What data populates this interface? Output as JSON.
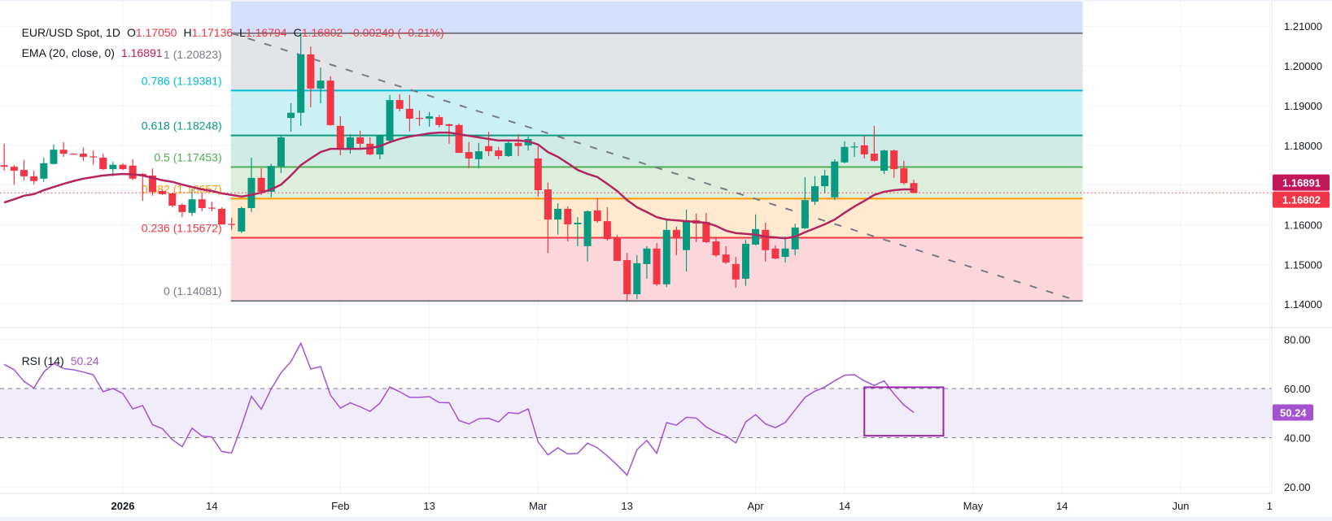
{
  "legend": {
    "symbol": "EUR/USD Spot, 1D",
    "o_label": "O",
    "open": "1.17050",
    "h_label": "H",
    "high": "1.17136",
    "l_label": "L",
    "low": "1.16794",
    "c_label": "C",
    "close": "1.16802",
    "change": "-0.00249 (−0.21%)"
  },
  "ema_legend": {
    "label": "EMA (20, close, 0)",
    "value": "1.16891"
  },
  "rsi_legend": {
    "label": "RSI (14)",
    "value": "50.24"
  },
  "colors": {
    "up": "#089981",
    "down": "#f23645",
    "ema": "#b2255f",
    "rsi": "#a552d2",
    "rsi_band": "#f1ecf9",
    "ema_badge": "#c2185b",
    "price_badge": "#f23645",
    "rsi_badge": "#a552d2",
    "trendline": "#787b86",
    "rsi_box": "#9c27b0"
  },
  "chart_data": [
    {
      "type": "candlestick",
      "ylim": [
        1.1341,
        1.2166
      ],
      "y_ticks": [
        "1.21000",
        "1.20000",
        "1.19000",
        "1.18000",
        "1.16000",
        "1.15000",
        "1.14000"
      ],
      "y_gridlines": [
        1.21,
        1.2,
        1.19,
        1.18,
        1.17,
        1.16,
        1.15,
        1.14
      ],
      "x_ticks": [
        {
          "label": "2026",
          "date": "2026-01-01",
          "bold": true
        },
        {
          "label": "14",
          "date": "2026-01-14"
        },
        {
          "label": "Feb",
          "date": "2026-02-02"
        },
        {
          "label": "13",
          "date": "2026-02-13"
        },
        {
          "label": "Mar",
          "date": "2026-03-02"
        },
        {
          "label": "13",
          "date": "2026-03-13"
        },
        {
          "label": "Apr",
          "date": "2026-04-01"
        },
        {
          "label": "14",
          "date": "2026-04-14"
        },
        {
          "label": "May",
          "date": "2026-05-01"
        },
        {
          "label": "14",
          "date": "2026-05-14"
        },
        {
          "label": "Jun",
          "date": "2026-06-01"
        },
        {
          "label": "1",
          "date": "2026-06-12"
        }
      ],
      "dates": [
        "2025-12-16",
        "2025-12-17",
        "2025-12-18",
        "2025-12-19",
        "2025-12-22",
        "2025-12-23",
        "2025-12-24",
        "2025-12-25",
        "2025-12-26",
        "2025-12-29",
        "2025-12-30",
        "2025-12-31",
        "2026-01-01",
        "2026-01-02",
        "2026-01-05",
        "2026-01-06",
        "2026-01-07",
        "2026-01-08",
        "2026-01-09",
        "2026-01-12",
        "2026-01-13",
        "2026-01-14",
        "2026-01-15",
        "2026-01-16",
        "2026-01-19",
        "2026-01-20",
        "2026-01-21",
        "2026-01-22",
        "2026-01-23",
        "2026-01-26",
        "2026-01-27",
        "2026-01-28",
        "2026-01-29",
        "2026-01-30",
        "2026-02-02",
        "2026-02-03",
        "2026-02-04",
        "2026-02-05",
        "2026-02-06",
        "2026-02-09",
        "2026-02-10",
        "2026-02-11",
        "2026-02-12",
        "2026-02-13",
        "2026-02-16",
        "2026-02-17",
        "2026-02-18",
        "2026-02-19",
        "2026-02-20",
        "2026-02-23",
        "2026-02-24",
        "2026-02-25",
        "2026-02-26",
        "2026-02-27",
        "2026-03-02",
        "2026-03-03",
        "2026-03-04",
        "2026-03-05",
        "2026-03-06",
        "2026-03-09",
        "2026-03-10",
        "2026-03-11",
        "2026-03-12",
        "2026-03-13",
        "2026-03-16",
        "2026-03-17",
        "2026-03-18",
        "2026-03-19",
        "2026-03-20",
        "2026-03-23",
        "2026-03-24",
        "2026-03-25",
        "2026-03-26",
        "2026-03-27",
        "2026-03-30",
        "2026-03-31",
        "2026-04-01",
        "2026-04-02",
        "2026-04-03",
        "2026-04-06",
        "2026-04-07",
        "2026-04-08",
        "2026-04-09",
        "2026-04-10",
        "2026-04-13",
        "2026-04-14",
        "2026-04-15",
        "2026-04-16",
        "2026-04-17",
        "2026-04-20",
        "2026-04-21",
        "2026-04-22",
        "2026-04-23"
      ],
      "ohlc": [
        [
          1.175,
          1.1804,
          1.1736,
          1.1746
        ],
        [
          1.1746,
          1.175,
          1.1701,
          1.1736
        ],
        [
          1.1738,
          1.1763,
          1.1712,
          1.1722
        ],
        [
          1.1722,
          1.1736,
          1.1701,
          1.171
        ],
        [
          1.1716,
          1.1769,
          1.1708,
          1.1755
        ],
        [
          1.1753,
          1.1802,
          1.1752,
          1.1789
        ],
        [
          1.1789,
          1.1808,
          1.1771,
          1.1779
        ],
        [
          1.1779,
          1.178,
          1.1777,
          1.1778
        ],
        [
          1.1779,
          1.1795,
          1.1761,
          1.1771
        ],
        [
          1.1772,
          1.1787,
          1.1751,
          1.177
        ],
        [
          1.1769,
          1.1779,
          1.1738,
          1.174
        ],
        [
          1.174,
          1.1759,
          1.1722,
          1.1751
        ],
        [
          1.1751,
          1.1755,
          1.1738,
          1.174
        ],
        [
          1.1749,
          1.1765,
          1.1712,
          1.1716
        ],
        [
          1.1728,
          1.173,
          1.166,
          1.1724
        ],
        [
          1.1724,
          1.1742,
          1.1673,
          1.1683
        ],
        [
          1.1685,
          1.1688,
          1.1675,
          1.1677
        ],
        [
          1.1679,
          1.1681,
          1.1644,
          1.1648
        ],
        [
          1.165,
          1.1654,
          1.1619,
          1.1632
        ],
        [
          1.163,
          1.1691,
          1.1622,
          1.1664
        ],
        [
          1.1664,
          1.1679,
          1.1634,
          1.1642
        ],
        [
          1.1643,
          1.1658,
          1.1634,
          1.1642
        ],
        [
          1.164,
          1.1644,
          1.16,
          1.1601
        ],
        [
          1.1602,
          1.1617,
          1.1587,
          1.1601
        ],
        [
          1.1583,
          1.1646,
          1.1579,
          1.1642
        ],
        [
          1.1642,
          1.1769,
          1.1632,
          1.1718
        ],
        [
          1.1718,
          1.1742,
          1.1675,
          1.1683
        ],
        [
          1.1683,
          1.1753,
          1.1669,
          1.1748
        ],
        [
          1.1747,
          1.1824,
          1.173,
          1.182
        ],
        [
          1.1869,
          1.1906,
          1.1834,
          1.1882
        ],
        [
          1.1882,
          1.20823,
          1.1849,
          1.2029
        ],
        [
          1.2029,
          1.2049,
          1.1896,
          1.1943
        ],
        [
          1.1943,
          1.1996,
          1.1906,
          1.1963
        ],
        [
          1.1963,
          1.1974,
          1.1849,
          1.1851
        ],
        [
          1.1849,
          1.1873,
          1.1775,
          1.1789
        ],
        [
          1.1789,
          1.1828,
          1.1779,
          1.182
        ],
        [
          1.182,
          1.1837,
          1.1792,
          1.1804
        ],
        [
          1.1804,
          1.182,
          1.1775,
          1.1777
        ],
        [
          1.1777,
          1.1826,
          1.1765,
          1.1824
        ],
        [
          1.1812,
          1.1927,
          1.1805,
          1.1914
        ],
        [
          1.1914,
          1.1929,
          1.1886,
          1.1892
        ],
        [
          1.1892,
          1.1927,
          1.1835,
          1.1867
        ],
        [
          1.1869,
          1.1888,
          1.1849,
          1.1867
        ],
        [
          1.1867,
          1.1884,
          1.1847,
          1.1873
        ],
        [
          1.1871,
          1.1877,
          1.1845,
          1.1851
        ],
        [
          1.1853,
          1.1855,
          1.1804,
          1.1849
        ],
        [
          1.1851,
          1.1855,
          1.1781,
          1.1781
        ],
        [
          1.1783,
          1.1808,
          1.1742,
          1.1767
        ],
        [
          1.1765,
          1.1806,
          1.1742,
          1.1785
        ],
        [
          1.1798,
          1.1834,
          1.1773,
          1.1785
        ],
        [
          1.1787,
          1.1796,
          1.1765,
          1.1773
        ],
        [
          1.1773,
          1.1814,
          1.1771,
          1.1806
        ],
        [
          1.1806,
          1.1828,
          1.1773,
          1.1798
        ],
        [
          1.18,
          1.1822,
          1.1787,
          1.1816
        ],
        [
          1.1767,
          1.1798,
          1.1671,
          1.1687
        ],
        [
          1.1689,
          1.1706,
          1.1529,
          1.1613
        ],
        [
          1.1613,
          1.1654,
          1.1575,
          1.164
        ],
        [
          1.164,
          1.1646,
          1.1558,
          1.1601
        ],
        [
          1.1601,
          1.1619,
          1.1546,
          1.1605
        ],
        [
          1.1546,
          1.1636,
          1.1507,
          1.1634
        ],
        [
          1.1636,
          1.1667,
          1.1605,
          1.1609
        ],
        [
          1.1609,
          1.1644,
          1.156,
          1.1564
        ],
        [
          1.1566,
          1.1574,
          1.1509,
          1.1509
        ],
        [
          1.1511,
          1.1529,
          1.14081,
          1.1425
        ],
        [
          1.1425,
          1.1523,
          1.1413,
          1.1503
        ],
        [
          1.1501,
          1.1546,
          1.1464,
          1.154
        ],
        [
          1.154,
          1.1554,
          1.1446,
          1.145
        ],
        [
          1.145,
          1.1615,
          1.1443,
          1.1587
        ],
        [
          1.1587,
          1.1595,
          1.1523,
          1.1566
        ],
        [
          1.1536,
          1.1638,
          1.1482,
          1.1611
        ],
        [
          1.1611,
          1.1628,
          1.1556,
          1.1603
        ],
        [
          1.1607,
          1.163,
          1.1554,
          1.1556
        ],
        [
          1.1558,
          1.157,
          1.1519,
          1.1523
        ],
        [
          1.1525,
          1.1546,
          1.1501,
          1.1505
        ],
        [
          1.1501,
          1.1519,
          1.1441,
          1.1462
        ],
        [
          1.1464,
          1.1562,
          1.1446,
          1.1552
        ],
        [
          1.155,
          1.1626,
          1.1548,
          1.1589
        ],
        [
          1.1587,
          1.1605,
          1.1507,
          1.1536
        ],
        [
          1.154,
          1.1548,
          1.1513,
          1.1515
        ],
        [
          1.1519,
          1.157,
          1.1505,
          1.154
        ],
        [
          1.1538,
          1.1603,
          1.1523,
          1.1593
        ],
        [
          1.1591,
          1.172,
          1.1589,
          1.1662
        ],
        [
          1.1658,
          1.1722,
          1.165,
          1.1697
        ],
        [
          1.1697,
          1.1738,
          1.1679,
          1.1724
        ],
        [
          1.1669,
          1.1765,
          1.1662,
          1.1759
        ],
        [
          1.1757,
          1.181,
          1.1755,
          1.1796
        ],
        [
          1.1795,
          1.1808,
          1.1771,
          1.1797
        ],
        [
          1.18,
          1.1824,
          1.1767,
          1.1777
        ],
        [
          1.1779,
          1.1849,
          1.1759,
          1.1761
        ],
        [
          1.1736,
          1.1789,
          1.1728,
          1.1787
        ],
        [
          1.1787,
          1.1789,
          1.1718,
          1.174
        ],
        [
          1.1742,
          1.1761,
          1.1701,
          1.1705
        ],
        [
          1.1705,
          1.17136,
          1.16794,
          1.16802
        ]
      ],
      "ema": {
        "name": "EMA (20, close, 0)",
        "values": [
          1.1656,
          1.1664,
          1.1673,
          1.1677,
          1.1687,
          1.1695,
          1.1703,
          1.171,
          1.1716,
          1.172,
          1.1724,
          1.1726,
          1.1728,
          1.1727,
          1.1724,
          1.1718,
          1.1712,
          1.1708,
          1.1701,
          1.1695,
          1.1689,
          1.1685,
          1.1679,
          1.1675,
          1.1671,
          1.1675,
          1.1681,
          1.1689,
          1.1701,
          1.1724,
          1.175,
          1.1767,
          1.1783,
          1.1791,
          1.1791,
          1.1791,
          1.1791,
          1.1793,
          1.1798,
          1.1808,
          1.1816,
          1.1822,
          1.1826,
          1.183,
          1.1832,
          1.1832,
          1.1828,
          1.1824,
          1.182,
          1.1816,
          1.1812,
          1.1812,
          1.1812,
          1.181,
          1.1802,
          1.1783,
          1.1771,
          1.1755,
          1.1738,
          1.1728,
          1.172,
          1.1703,
          1.1685,
          1.1662,
          1.1644,
          1.1632,
          1.1619,
          1.1613,
          1.1611,
          1.1609,
          1.1607,
          1.1605,
          1.1597,
          1.1585,
          1.1579,
          1.1577,
          1.1575,
          1.157,
          1.1568,
          1.1566,
          1.157,
          1.1581,
          1.1591,
          1.1601,
          1.1613,
          1.163,
          1.1646,
          1.166,
          1.1675,
          1.1683,
          1.1687,
          1.1689,
          1.16891
        ]
      },
      "last_price": 1.16802,
      "price_badges": [
        {
          "label": "1.16891",
          "value": 1.16891,
          "color": "#c2185b"
        },
        {
          "label": "1.16802",
          "value": 1.16802,
          "color": "#f23645"
        }
      ],
      "fibonacci": {
        "from_date": "2026-01-16",
        "to_date": "2026-05-18",
        "levels": [
          {
            "label": "1 (1.20823)",
            "price": 1.20823,
            "color": "#787b86",
            "fill": "#e3e4e7"
          },
          {
            "label": "0.786 (1.19381)",
            "price": 1.19381,
            "color": "#00bcd4",
            "fill": "#ccf1f4"
          },
          {
            "label": "0.618 (1.18248)",
            "price": 1.18248,
            "color": "#089981",
            "fill": "#d0ebe5"
          },
          {
            "label": "0.5 (1.17453)",
            "price": 1.17453,
            "color": "#4caf50",
            "fill": "#ddefdc"
          },
          {
            "label": "0.382 (1.16657)",
            "price": 1.16657,
            "color": "#ff9800",
            "fill": "#ffead0"
          },
          {
            "label": "0.236 (1.15672)",
            "price": 1.15672,
            "color": "#f23645",
            "fill": "#fbd7db"
          },
          {
            "label": "0 (1.14081)",
            "price": 1.14081,
            "color": "#787b86",
            "fill": null
          }
        ],
        "above_fill": "#d3e0fb"
      },
      "trendline": {
        "from": {
          "date": "2026-01-16",
          "price": 1.20823
        },
        "to": {
          "date": "2026-05-15",
          "price": 1.1413
        },
        "style": "dashed"
      }
    },
    {
      "type": "line",
      "name": "RSI (14)",
      "ylim": [
        17.4,
        84.75
      ],
      "y_ticks": [
        "80.00",
        "60.00",
        "40.00",
        "20.00"
      ],
      "band": [
        40,
        60
      ],
      "values": [
        69.8,
        67.6,
        62.9,
        60.2,
        66.7,
        70.2,
        68.1,
        67.6,
        66.7,
        65.6,
        58.7,
        60.0,
        57.9,
        51.7,
        53.1,
        45.3,
        43.7,
        39.2,
        36.4,
        43.9,
        40.7,
        40.3,
        34.4,
        33.8,
        44.8,
        56.8,
        51.6,
        59.8,
        66.4,
        70.9,
        78.4,
        67.9,
        68.9,
        57.3,
        52.0,
        54.2,
        52.6,
        50.7,
        54.0,
        60.6,
        58.7,
        56.4,
        56.4,
        56.7,
        54.3,
        54.2,
        47.0,
        45.6,
        47.7,
        47.9,
        46.4,
        50.2,
        49.8,
        51.7,
        38.3,
        33.0,
        35.9,
        33.4,
        33.6,
        37.8,
        35.9,
        32.6,
        28.9,
        24.8,
        35.1,
        38.9,
        33.7,
        46.1,
        45.1,
        48.3,
        48.0,
        44.4,
        42.2,
        40.7,
        37.9,
        46.4,
        49.4,
        45.6,
        44.1,
        46.2,
        51.3,
        56.4,
        58.9,
        60.6,
        63.1,
        65.4,
        65.6,
        63.1,
        61.2,
        63.1,
        57.8,
        53.3,
        50.24
      ],
      "badge": {
        "label": "50.24",
        "value": 50.24
      },
      "rectangle": {
        "from_date": "2026-04-16",
        "to_date": "2026-04-28",
        "top": 60.5,
        "bottom": 40.8
      }
    }
  ]
}
